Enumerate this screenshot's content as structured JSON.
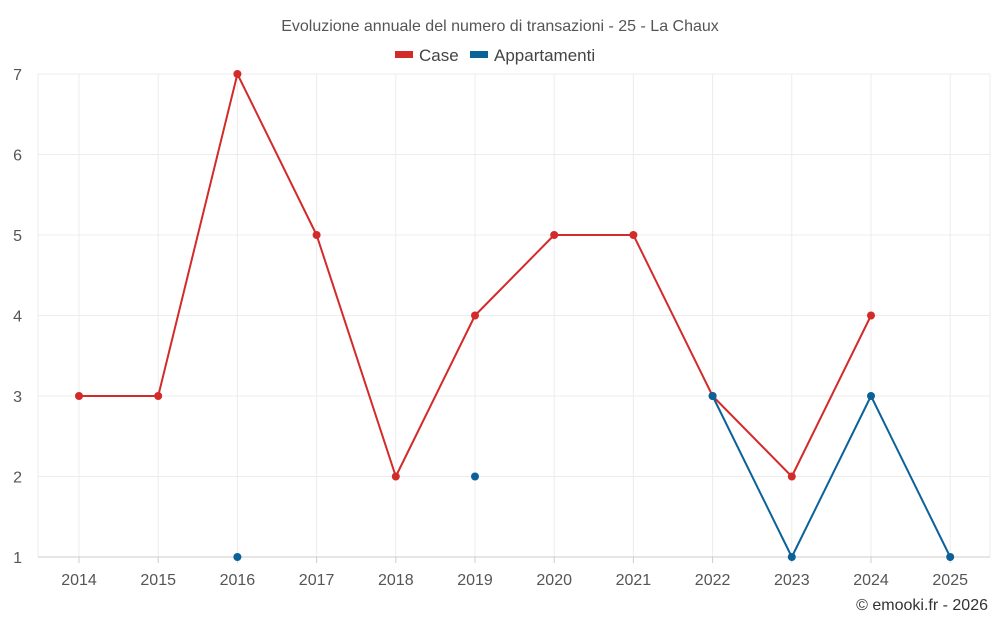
{
  "chart_data": {
    "type": "line",
    "title": "Evoluzione annuale del numero di transazioni - 25 - La Chaux",
    "xlabel": "",
    "ylabel": "",
    "categories": [
      "2014",
      "2015",
      "2016",
      "2017",
      "2018",
      "2019",
      "2020",
      "2021",
      "2022",
      "2023",
      "2024",
      "2025"
    ],
    "ylim": [
      1,
      7
    ],
    "yticks": [
      "1",
      "2",
      "3",
      "4",
      "5",
      "6",
      "7"
    ],
    "grid": true,
    "legend_position": "top-center",
    "series": [
      {
        "name": "Case",
        "color": "#d32a2a",
        "values": [
          3,
          3,
          7,
          5,
          2,
          4,
          5,
          5,
          3,
          2,
          4,
          null
        ]
      },
      {
        "name": "Appartamenti",
        "color": "#0b6298",
        "values": [
          null,
          null,
          1,
          null,
          null,
          2,
          null,
          null,
          3,
          1,
          3,
          1
        ]
      }
    ]
  },
  "credit": "© emooki.fr - 2026"
}
